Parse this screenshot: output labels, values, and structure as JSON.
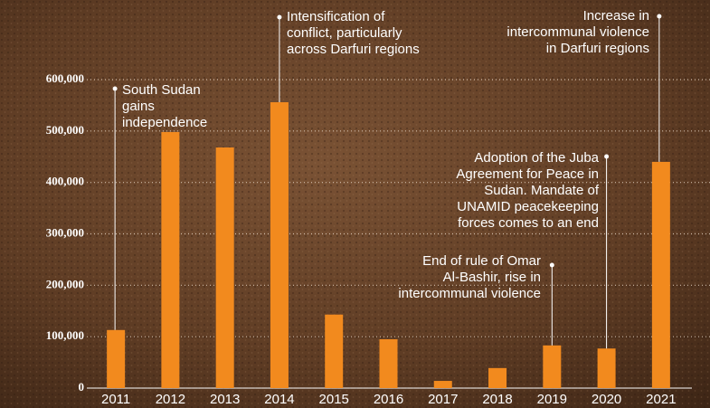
{
  "chart_data": {
    "type": "bar",
    "categories": [
      "2011",
      "2012",
      "2013",
      "2014",
      "2015",
      "2016",
      "2017",
      "2018",
      "2019",
      "2020",
      "2021"
    ],
    "values": [
      113000,
      498000,
      468000,
      556000,
      143000,
      95000,
      14000,
      39000,
      83000,
      77000,
      440000
    ],
    "color": "#f28a1e",
    "ylim": [
      0,
      600000
    ],
    "yticks": [
      0,
      {
        "value": 100000,
        "label": "100,000"
      },
      {
        "value": 200000,
        "label": "200,000"
      },
      {
        "value": 300000,
        "label": "300,000"
      },
      {
        "value": 400000,
        "label": "400,000"
      },
      {
        "value": 500000,
        "label": "500,000"
      },
      {
        "value": 600000,
        "label": "600,000"
      }
    ],
    "grid": true,
    "annotations": [
      {
        "lines": [
          "South Sudan",
          "gains",
          "independence"
        ]
      },
      {
        "lines": [
          "Intensification of",
          "conflict, particularly",
          "across Darfuri regions"
        ]
      },
      {
        "lines": [
          "Increase in",
          "intercommunal violence",
          "in Darfuri regions"
        ]
      },
      {
        "lines": [
          "Adoption of the Juba",
          "Agreement for Peace in",
          "Sudan. Mandate of",
          "UNAMID peacekeeping",
          "forces comes to an end"
        ]
      },
      {
        "lines": [
          "End of rule of Omar",
          "Al-Bashir, rise in",
          "intercommunal violence"
        ]
      }
    ]
  }
}
